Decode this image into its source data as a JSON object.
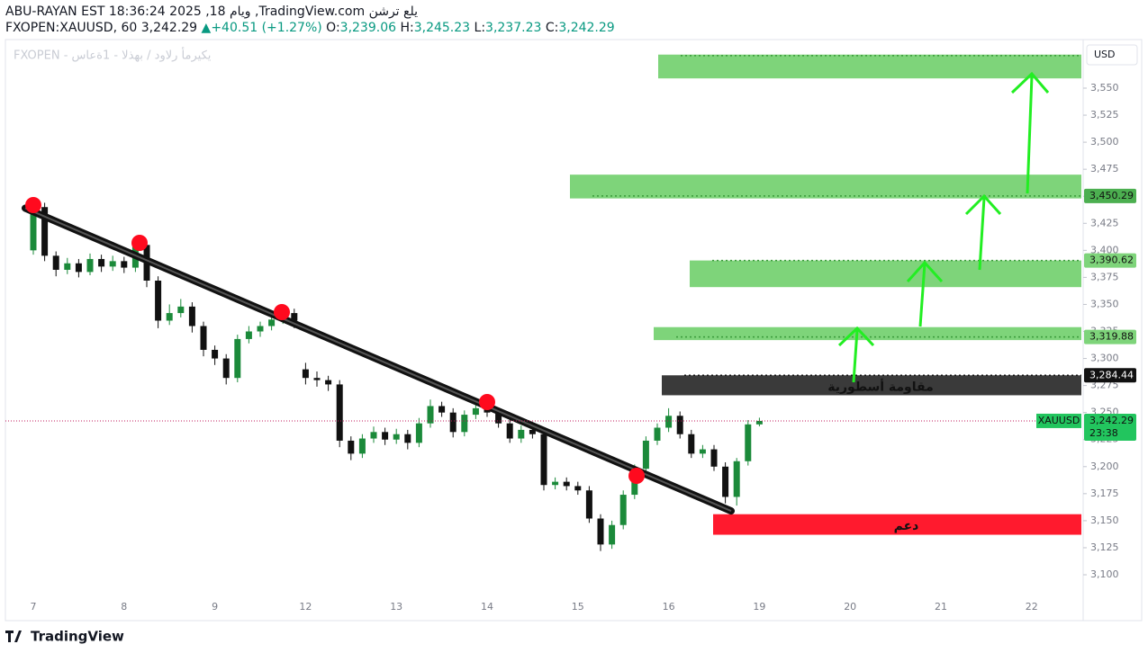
{
  "header": {
    "line1": "ABU-RAYAN EST 18:36:24 2025 ,18 ويام ,TradingView.com يلع ترشن",
    "symbol": "FXOPEN:XAUUSD, 60",
    "last": "3,242.29",
    "arrow": "▲",
    "change": "+40.51 (+1.27%)",
    "o_label": "O:",
    "o": "3,239.06",
    "h_label": "H:",
    "h": "3,245.23",
    "l_label": "L:",
    "l": "3,237.23",
    "c_label": "C:",
    "c": "3,242.29",
    "watermark": "FXOPEN - يكيرمأ رلاود / بهذلا - 1ةعاس",
    "currency": "USD",
    "ticker_tag": "XAUUSD",
    "countdown": "23:38",
    "logo": "TradingView"
  },
  "chart_data": {
    "type": "candlestick",
    "up_color": "#1b8a3a",
    "down_color": "#111111",
    "grid": false,
    "categories": [
      "7",
      null,
      null,
      null,
      null,
      null,
      null,
      null,
      "8",
      null,
      null,
      null,
      null,
      null,
      null,
      null,
      "9",
      null,
      null,
      null,
      null,
      null,
      null,
      null,
      "12",
      null,
      null,
      null,
      null,
      null,
      null,
      null,
      "13",
      null,
      null,
      null,
      null,
      null,
      null,
      null,
      "14",
      null,
      null,
      null,
      null,
      null,
      null,
      null,
      "15",
      null,
      null,
      null,
      null,
      null,
      null,
      null,
      "16",
      null,
      null,
      null,
      null,
      null,
      null,
      null,
      "19",
      null,
      null,
      null,
      null,
      null,
      null,
      null,
      "20",
      null,
      null,
      null,
      null,
      null,
      null,
      null,
      "21",
      null,
      null,
      null,
      null,
      null,
      null,
      null,
      "22",
      null,
      null,
      null,
      null
    ],
    "open": [
      3400,
      3440,
      3395,
      3382,
      3388,
      3380,
      3392,
      3385,
      3390,
      3384,
      3405,
      3372,
      3335,
      3342,
      3348,
      3330,
      3308,
      3300,
      3282,
      3318,
      3325,
      3330,
      3336,
      3342,
      3290,
      3282,
      3280,
      3276,
      3224,
      3212,
      3226,
      3232,
      3225,
      3230,
      3222,
      3240,
      3256,
      3250,
      3232,
      3248,
      3254,
      3250,
      3240,
      3226,
      3234,
      3230,
      3183,
      3186,
      3182,
      3178,
      3152,
      3128,
      3146,
      3174,
      3198,
      3224,
      3236,
      3247,
      3230,
      3212,
      3216,
      3200,
      3172,
      3205,
      3239.06,
      null,
      null,
      null,
      null,
      null,
      null,
      null,
      null,
      null,
      null,
      null,
      null,
      null,
      null,
      null,
      null,
      null,
      null,
      null,
      null,
      null,
      null,
      null,
      null,
      null,
      null,
      null,
      null
    ],
    "high": [
      3446,
      3444,
      3399,
      3393,
      3392,
      3397,
      3396,
      3395,
      3394,
      3410,
      3409,
      3376,
      3350,
      3355,
      3352,
      3334,
      3312,
      3304,
      3322,
      3330,
      3334,
      3340,
      3348,
      3346,
      3296,
      3288,
      3284,
      3280,
      3228,
      3230,
      3237,
      3236,
      3235,
      3234,
      3245,
      3262,
      3260,
      3254,
      3252,
      3258,
      3258,
      3254,
      3244,
      3238,
      3238,
      3234,
      3190,
      3190,
      3186,
      3182,
      3156,
      3150,
      3178,
      3202,
      3228,
      3240,
      3254,
      3251,
      3234,
      3220,
      3220,
      3204,
      3208,
      3243,
      3245.23,
      null,
      null,
      null,
      null,
      null,
      null,
      null,
      null,
      null,
      null,
      null,
      null,
      null,
      null,
      null,
      null,
      null,
      null,
      null,
      null,
      null,
      null,
      null,
      null,
      null,
      null,
      null,
      null
    ],
    "low": [
      3396,
      3390,
      3376,
      3378,
      3375,
      3377,
      3380,
      3381,
      3379,
      3380,
      3366,
      3328,
      3331,
      3338,
      3324,
      3302,
      3294,
      3276,
      3278,
      3314,
      3320,
      3326,
      3332,
      3328,
      3276,
      3274,
      3270,
      3218,
      3206,
      3208,
      3222,
      3220,
      3221,
      3216,
      3218,
      3236,
      3246,
      3227,
      3228,
      3244,
      3246,
      3236,
      3222,
      3222,
      3226,
      3178,
      3179,
      3178,
      3174,
      3148,
      3122,
      3124,
      3142,
      3170,
      3194,
      3220,
      3232,
      3226,
      3208,
      3208,
      3196,
      3166,
      3164,
      3201,
      3237.23,
      null,
      null,
      null,
      null,
      null,
      null,
      null,
      null,
      null,
      null,
      null,
      null,
      null,
      null,
      null,
      null,
      null,
      null,
      null,
      null,
      null,
      null,
      null,
      null,
      null,
      null,
      null,
      null
    ],
    "close": [
      3440,
      3395,
      3382,
      3388,
      3380,
      3392,
      3385,
      3390,
      3384,
      3405,
      3372,
      3335,
      3342,
      3348,
      3330,
      3308,
      3300,
      3282,
      3318,
      3325,
      3330,
      3336,
      3342,
      3335,
      3282,
      3280,
      3276,
      3224,
      3212,
      3226,
      3232,
      3225,
      3230,
      3222,
      3240,
      3256,
      3250,
      3232,
      3248,
      3254,
      3250,
      3240,
      3226,
      3234,
      3230,
      3183,
      3186,
      3182,
      3178,
      3152,
      3128,
      3146,
      3174,
      3198,
      3224,
      3236,
      3247,
      3230,
      3212,
      3216,
      3200,
      3172,
      3205,
      3239.06,
      3242.29,
      null,
      null,
      null,
      null,
      null,
      null,
      null,
      null,
      null,
      null,
      null,
      null,
      null,
      null,
      null,
      null,
      null,
      null,
      null,
      null,
      null,
      null,
      null,
      null,
      null,
      null,
      null,
      null
    ],
    "ylim": [
      3057.6,
      3594.9
    ],
    "yticks": [
      {
        "value": 3100,
        "label": "3,100"
      },
      {
        "value": 3125,
        "label": "3,125"
      },
      {
        "value": 3150,
        "label": "3,150"
      },
      {
        "value": 3175,
        "label": "3,175"
      },
      {
        "value": 3200,
        "label": "3,200"
      },
      {
        "value": 3225,
        "label": "3,225"
      },
      {
        "value": 3250,
        "label": "3,250"
      },
      {
        "value": 3275,
        "label": "3,275"
      },
      {
        "value": 3300,
        "label": "3,300"
      },
      {
        "value": 3325,
        "label": "3,325"
      },
      {
        "value": 3350,
        "label": "3,350"
      },
      {
        "value": 3375,
        "label": "3,375"
      },
      {
        "value": 3400,
        "label": "3,400"
      },
      {
        "value": 3425,
        "label": "3,425"
      },
      {
        "value": 3450,
        "label": "3,450"
      },
      {
        "value": 3475,
        "label": "3,475"
      },
      {
        "value": 3500,
        "label": "3,500"
      },
      {
        "value": 3525,
        "label": "3,525"
      },
      {
        "value": 3550,
        "label": "3,550"
      }
    ],
    "price_labels": [
      {
        "value": 3450.29,
        "label": "3,450.29",
        "color": "#4caf50"
      },
      {
        "value": 3390.62,
        "label": "3,390.62",
        "color": "#7ed47a"
      },
      {
        "value": 3319.88,
        "label": "3,319.88",
        "color": "#7ed47a"
      },
      {
        "value": 3284.44,
        "label": "3,284.44",
        "color": "#111111"
      },
      {
        "value": 3242.29,
        "label": "3,242.29",
        "color": "#22c55e"
      }
    ],
    "zones": [
      {
        "top": 3581,
        "bottom": 3559,
        "line": 3580,
        "color": "#7ed47a"
      },
      {
        "top": 3470,
        "bottom": 3448,
        "line": 3450.29,
        "color": "#7ed47a"
      },
      {
        "top": 3390.62,
        "bottom": 3366,
        "line": 3390.62,
        "color": "#7ed47a"
      },
      {
        "top": 3329,
        "bottom": 3317,
        "line": 3319.88,
        "color": "#7ed47a"
      },
      {
        "top": 3284.44,
        "bottom": 3266,
        "line": 3284.44,
        "color": "#3a3a3a",
        "label": "مقاومة أسطورية"
      },
      {
        "top": 3156,
        "bottom": 3137,
        "color": "#ff1a2e",
        "label": "دعم"
      }
    ],
    "trendline": {
      "from": 3439,
      "to": 3159
    }
  }
}
